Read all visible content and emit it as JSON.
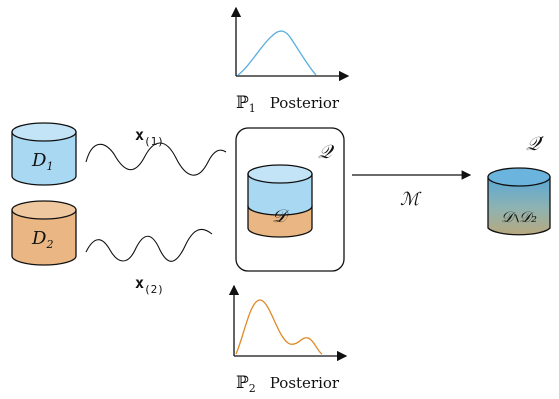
{
  "datasets": {
    "d1": {
      "name": "D",
      "subscript": "1",
      "color": "#a9d8f2"
    },
    "d2": {
      "name": "D",
      "subscript": "2",
      "color": "#eab784"
    }
  },
  "signals": {
    "x1": {
      "name": "x",
      "subscript": "(1)"
    },
    "x2": {
      "name": "x",
      "subscript": "(2)"
    }
  },
  "plots": {
    "p1": {
      "prob": "ℙ",
      "subscript": "1",
      "text": "Posterior",
      "color": "#5aaee0"
    },
    "p2": {
      "prob": "ℙ",
      "subscript": "2",
      "text": "Posterior",
      "color": "#e08a2a"
    }
  },
  "query": {
    "label": "𝒬",
    "db_label": "𝒟"
  },
  "mechanism": {
    "label": "ℳ"
  },
  "output": {
    "label": "𝒬′",
    "db_label": "𝒟∖𝒟₂"
  }
}
